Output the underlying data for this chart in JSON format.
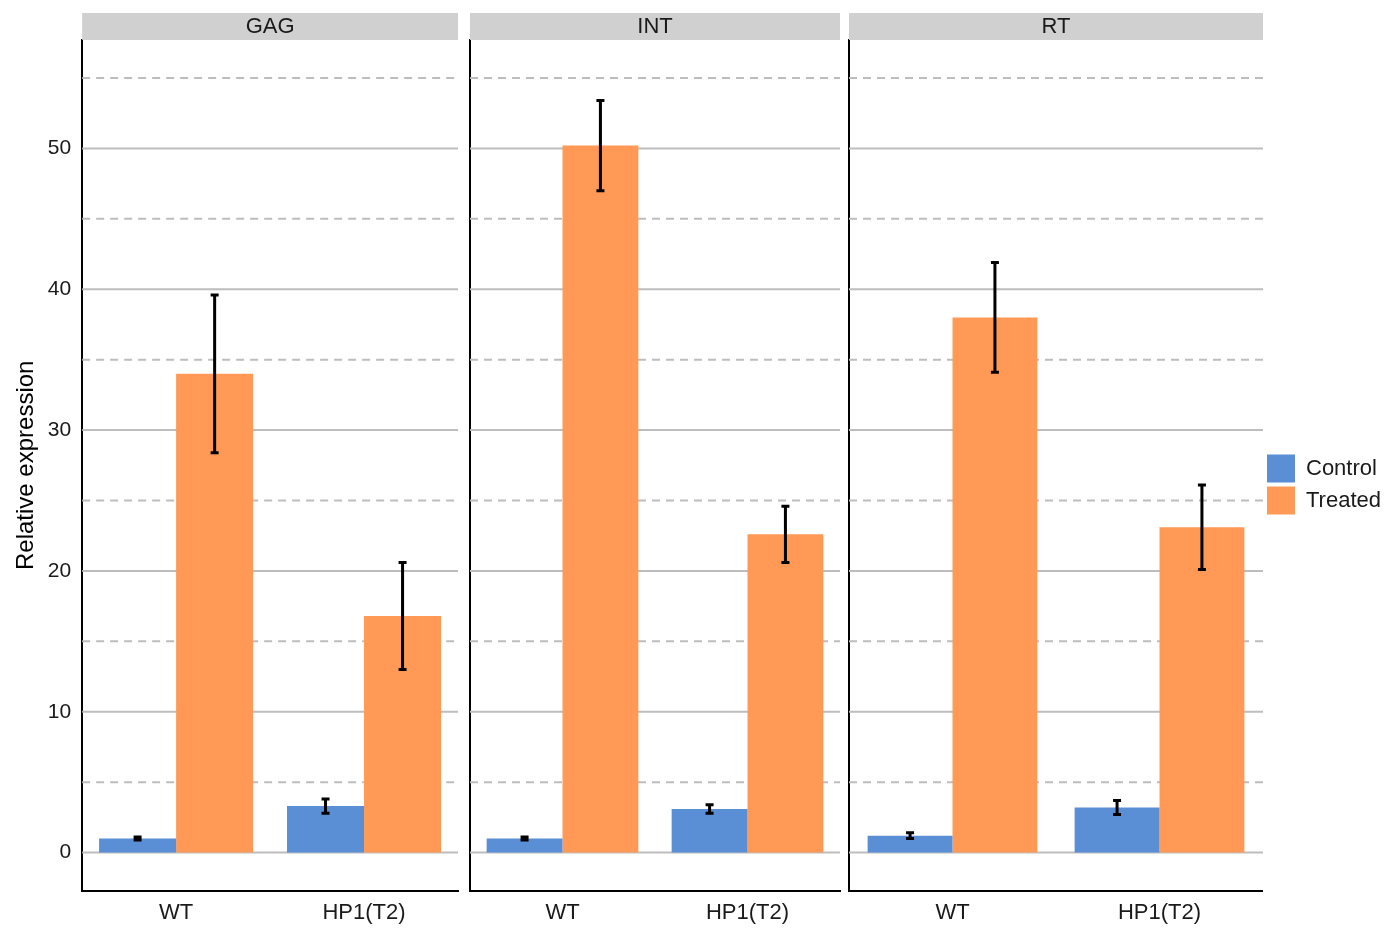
{
  "chart_data": [
    {
      "type": "bar",
      "title": "GAG",
      "ylabel": "Relative expression",
      "categories": [
        "WT",
        "HP1(T2)"
      ],
      "series": [
        {
          "color": "#5a8fd6",
          "values": [
            1.0,
            3.3
          ],
          "errors": [
            0.1,
            0.5
          ]
        },
        {
          "color": "#ff9955",
          "values": [
            34.0,
            16.8
          ],
          "errors": [
            5.6,
            3.8
          ]
        }
      ],
      "ylim": [
        -2.7,
        57.7
      ],
      "yticks": [
        0,
        {
          "value": 5,
          "label": null
        },
        10,
        {
          "value": 15,
          "label": null
        },
        20,
        {
          "value": 25,
          "label": null
        },
        30,
        {
          "value": 35,
          "label": null
        },
        40,
        {
          "value": 45,
          "label": null
        },
        50,
        {
          "value": 55,
          "label": null
        }
      ],
      "grid": "y"
    },
    {
      "type": "bar",
      "title": "INT",
      "categories": [
        "WT",
        "HP1(T2)"
      ],
      "series": [
        {
          "color": "#5a8fd6",
          "values": [
            1.0,
            3.1
          ],
          "errors": [
            0.1,
            0.3
          ]
        },
        {
          "color": "#ff9955",
          "values": [
            50.2,
            22.6
          ],
          "errors": [
            3.2,
            2.0
          ]
        }
      ],
      "ylim": [
        -2.7,
        57.7
      ],
      "yticks": [
        0,
        {
          "value": 5,
          "label": null
        },
        10,
        {
          "value": 15,
          "label": null
        },
        20,
        {
          "value": 25,
          "label": null
        },
        30,
        {
          "value": 35,
          "label": null
        },
        40,
        {
          "value": 45,
          "label": null
        },
        50,
        {
          "value": 55,
          "label": null
        }
      ],
      "grid": "y",
      "tick_labels": "x"
    },
    {
      "type": "bar",
      "title": "RT",
      "categories": [
        "WT",
        "HP1(T2)"
      ],
      "series": [
        {
          "name": "Control",
          "color": "#5a8fd6",
          "values": [
            1.2,
            3.2
          ],
          "errors": [
            0.2,
            0.5
          ]
        },
        {
          "name": "Treated",
          "color": "#ff9955",
          "values": [
            38.0,
            23.1
          ],
          "errors": [
            3.9,
            3.0
          ]
        }
      ],
      "ylim": [
        -2.7,
        57.7
      ],
      "yticks": [
        0,
        {
          "value": 5,
          "label": null
        },
        10,
        {
          "value": 15,
          "label": null
        },
        20,
        {
          "value": 25,
          "label": null
        },
        30,
        {
          "value": 35,
          "label": null
        },
        40,
        {
          "value": 45,
          "label": null
        },
        50,
        {
          "value": 55,
          "label": null
        }
      ],
      "grid": "y",
      "tick_labels": "x",
      "legend": "right"
    }
  ]
}
